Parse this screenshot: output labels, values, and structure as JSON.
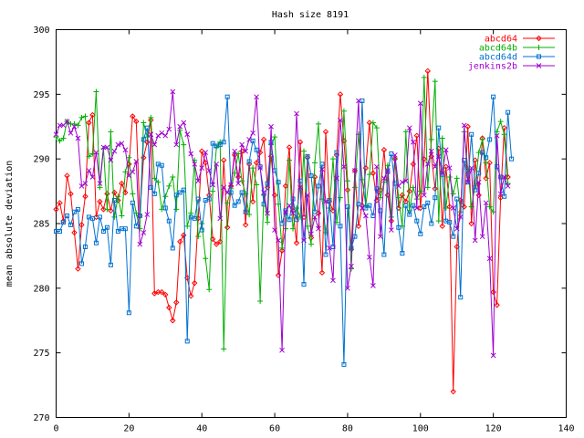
{
  "chart_data": {
    "type": "line",
    "title": "Hash size 8191",
    "xlabel": "",
    "ylabel": "mean absolute deviation",
    "xlim": [
      0,
      140
    ],
    "ylim": [
      270,
      300
    ],
    "xticks": [
      "0",
      "20",
      "40",
      "60",
      "80",
      "100",
      "120",
      "140"
    ],
    "yticks": [
      "270",
      "275",
      "280",
      "285",
      "290",
      "295",
      "300"
    ],
    "grid": false,
    "legend_position": "top-right",
    "series": [
      {
        "name": "abcd64",
        "color": "#ff0000",
        "marker": "diamond",
        "values": [
          286.1,
          286.6,
          285.2,
          288.7,
          287.3,
          284.3,
          281.5,
          284.9,
          287.1,
          292.8,
          293.4,
          285.5,
          286.7,
          286.1,
          287.3,
          286.0,
          287.4,
          286.8,
          288.1,
          287.4,
          289.6,
          293.3,
          292.9,
          285.6,
          290.1,
          291.3,
          293.0,
          279.6,
          279.7,
          279.7,
          279.5,
          278.5,
          277.5,
          278.9,
          283.6,
          284.1,
          280.8,
          279.4,
          280.4,
          285.4,
          290.6,
          289.7,
          287.2,
          283.8,
          283.4,
          283.6,
          289.9,
          284.7,
          287.9,
          290.3,
          288.6,
          290.6,
          284.9,
          289.6,
          286.7,
          289.7,
          290.5,
          291.5,
          287.8,
          290.2,
          287.2,
          281.0,
          282.9,
          287.9,
          290.9,
          286.0,
          283.5,
          291.3,
          285.5,
          290.1,
          283.9,
          288.6,
          285.8,
          281.2,
          292.1,
          286.7,
          286.0,
          290.3,
          295.0,
          291.4,
          287.6,
          283.0,
          289.1,
          284.8,
          286.4,
          289.3,
          292.8,
          288.9,
          286.8,
          287.6,
          290.7,
          287.2,
          285.2,
          290.0,
          286.2,
          287.2,
          286.7,
          287.5,
          289.6,
          291.8,
          286.2,
          290.0,
          296.8,
          290.2,
          287.7,
          290.8,
          284.8,
          289.4,
          286.3,
          272.0,
          283.2,
          286.8,
          286.3,
          292.5,
          285.0,
          289.9,
          287.2,
          291.6,
          288.5,
          289.7,
          279.7,
          278.7,
          287.0,
          292.4,
          288.6
        ]
      },
      {
        "name": "abcd64b",
        "color": "#00b000",
        "marker": "plus",
        "values": [
          291.7,
          291.4,
          291.6,
          292.9,
          292.7,
          292.7,
          292.6,
          293.2,
          293.3,
          290.2,
          290.4,
          295.2,
          287.8,
          290.8,
          286.1,
          292.1,
          285.5,
          287.1,
          285.6,
          289.0,
          290.1,
          287.3,
          285.8,
          284.6,
          292.8,
          291.7,
          293.2,
          288.5,
          288.2,
          286.1,
          287.1,
          287.9,
          288.6,
          286.1,
          292.2,
          291.1,
          284.8,
          285.8,
          289.9,
          284.0,
          285.0,
          282.3,
          279.9,
          287.5,
          290.9,
          291.3,
          275.3,
          286.6,
          287.7,
          288.9,
          290.4,
          288.3,
          287.3,
          285.7,
          289.3,
          288.0,
          279.0,
          287.2,
          285.1,
          291.1,
          291.7,
          286.5,
          283.1,
          284.6,
          289.9,
          284.6,
          286.2,
          285.5,
          290.6,
          284.8,
          283.4,
          289.7,
          292.7,
          286.9,
          284.3,
          286.2,
          290.0,
          285.1,
          287.0,
          293.7,
          288.3,
          281.5,
          287.8,
          291.9,
          288.4,
          286.4,
          288.8,
          292.8,
          292.4,
          287.0,
          288.2,
          289.5,
          285.5,
          290.0,
          287.0,
          284.8,
          292.1,
          286.0,
          287.8,
          286.9,
          287.5,
          296.3,
          287.8,
          291.5,
          296.0,
          285.2,
          291.6,
          286.2,
          288.6,
          287.3,
          288.5,
          285.9,
          292.1,
          289.2,
          286.3,
          287.9,
          290.5,
          291.5,
          289.7,
          286.3,
          285.9,
          292.1,
          292.9,
          291.9,
          288.1
        ]
      },
      {
        "name": "abcd64d",
        "color": "#0070d0",
        "marker": "square",
        "values": [
          284.4,
          284.4,
          285.1,
          285.6,
          284.9,
          285.9,
          286.1,
          281.9,
          283.2,
          285.5,
          285.4,
          283.5,
          285.5,
          284.4,
          284.7,
          281.8,
          286.8,
          284.4,
          284.6,
          284.6,
          278.1,
          286.6,
          284.8,
          285.6,
          291.5,
          292.4,
          287.8,
          287.3,
          289.6,
          289.5,
          286.2,
          285.2,
          283.1,
          287.2,
          287.4,
          287.6,
          275.9,
          285.5,
          285.4,
          286.9,
          284.5,
          286.8,
          286.9,
          291.2,
          291.0,
          291.1,
          291.3,
          294.8,
          287.4,
          286.4,
          286.7,
          287.4,
          285.9,
          289.8,
          291.4,
          290.7,
          289.4,
          286.5,
          288.1,
          291.3,
          289.1,
          288.2,
          285.0,
          286.0,
          285.3,
          286.9,
          285.3,
          288.3,
          280.3,
          290.2,
          288.7,
          285.9,
          287.9,
          289.6,
          282.6,
          286.8,
          283.2,
          290.5,
          284.8,
          274.1,
          286.3,
          283.1,
          284.0,
          286.5,
          294.5,
          286.2,
          286.4,
          285.6,
          287.7,
          286.0,
          282.6,
          289.0,
          290.4,
          288.1,
          284.7,
          282.7,
          286.4,
          285.7,
          286.4,
          285.2,
          284.2,
          286.3,
          286.6,
          285.0,
          287.0,
          292.4,
          288.8,
          285.2,
          285.1,
          284.0,
          286.9,
          279.3,
          289.9,
          288.2,
          291.9,
          287.6,
          288.9,
          290.5,
          290.1,
          291.5,
          294.8,
          289.4,
          288.6,
          287.1,
          293.6,
          290.0
        ]
      },
      {
        "name": "jenkins2b",
        "color": "#a000d0",
        "marker": "x",
        "values": [
          291.9,
          292.6,
          292.6,
          292.9,
          292.0,
          292.5,
          291.6,
          287.9,
          288.1,
          289.1,
          288.6,
          290.5,
          288.1,
          290.9,
          290.9,
          289.9,
          290.6,
          291.1,
          291.2,
          290.7,
          288.7,
          289.0,
          289.8,
          283.4,
          284.3,
          285.7,
          291.9,
          291.1,
          291.8,
          292.0,
          291.8,
          292.3,
          295.2,
          291.1,
          292.5,
          292.8,
          291.9,
          290.4,
          289.6,
          288.3,
          289.3,
          290.5,
          289.1,
          288.0,
          289.6,
          285.4,
          287.8,
          287.4,
          288.0,
          290.6,
          288.1,
          291.1,
          290.6,
          291.5,
          292.0,
          294.8,
          289.3,
          287.4,
          285.8,
          292.5,
          284.5,
          283.7,
          275.2,
          285.9,
          286.4,
          285.8,
          293.5,
          287.8,
          283.7,
          287.2,
          284.2,
          285.5,
          284.6,
          289.2,
          286.7,
          283.1,
          280.6,
          288.5,
          293.0,
          289.4,
          280.0,
          281.7,
          289.1,
          294.5,
          286.2,
          285.6,
          282.4,
          280.2,
          289.4,
          284.0,
          288.5,
          289.1,
          284.5,
          290.3,
          287.9,
          288.2,
          288.3,
          292.4,
          291.3,
          286.2,
          294.3,
          287.2,
          289.6,
          290.6,
          289.4,
          290.2,
          288.9,
          290.7,
          289.3,
          286.2,
          284.6,
          285.5,
          292.6,
          288.2,
          289.3,
          283.7,
          288.2,
          284.0,
          286.6,
          282.3,
          274.8,
          291.8,
          287.3,
          288.6,
          287.9
        ]
      }
    ]
  }
}
